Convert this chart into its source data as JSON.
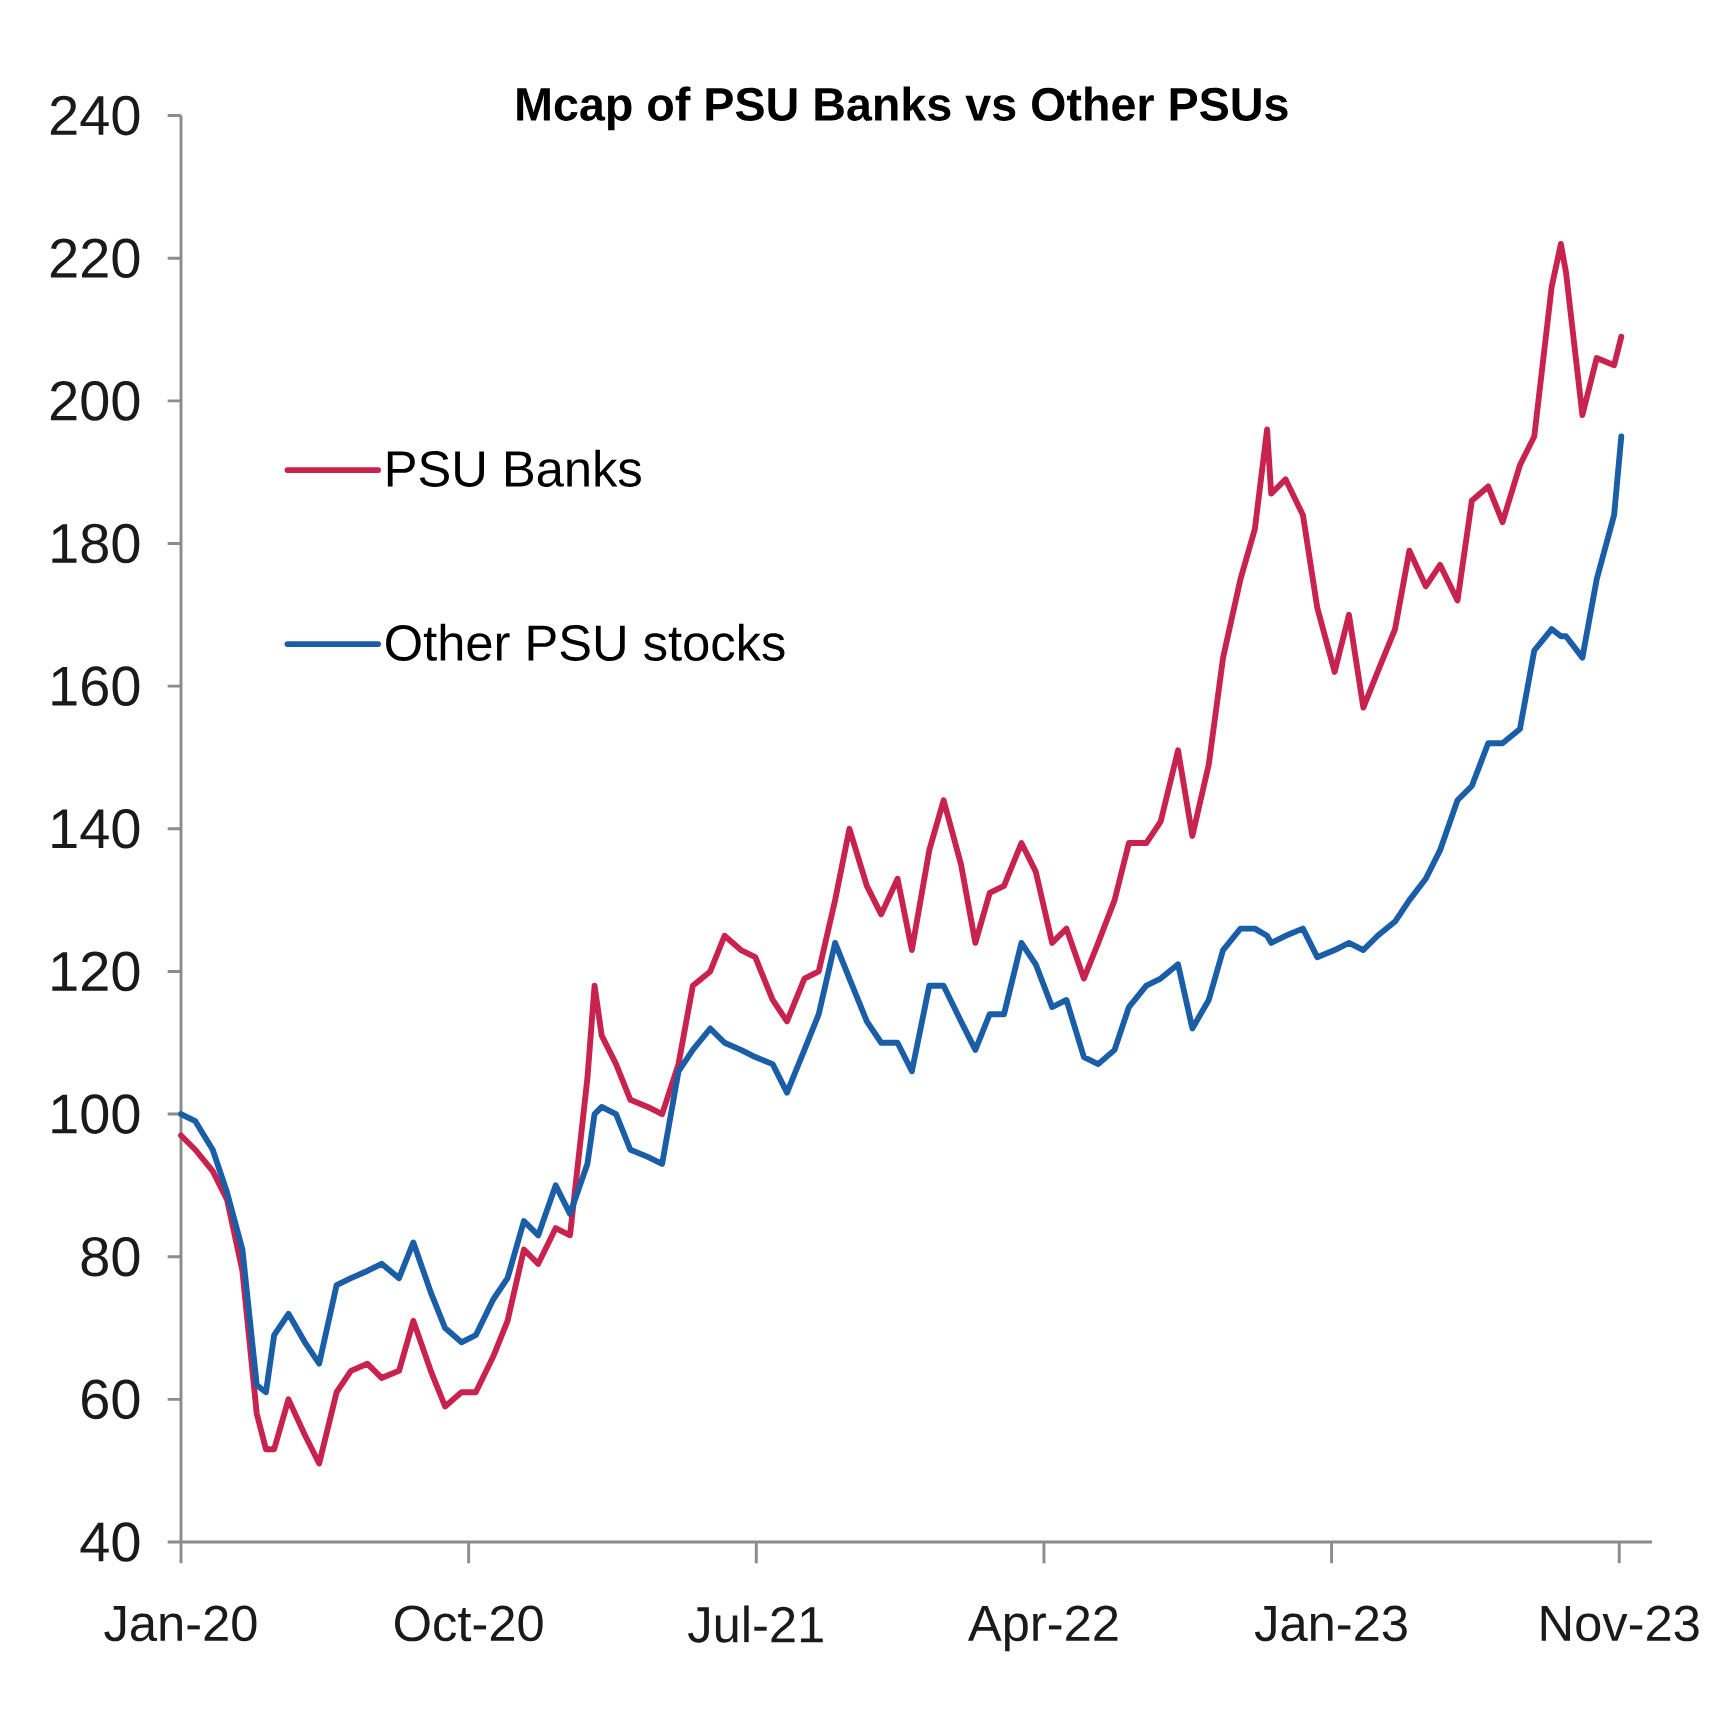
{
  "chart_data": {
    "type": "line",
    "title": "Mcap of PSU Banks vs Other PSUs",
    "x": [
      "2020-01-01",
      "2020-01-15",
      "2020-02-01",
      "2020-02-15",
      "2020-03-01",
      "2020-03-15",
      "2020-03-24",
      "2020-04-01",
      "2020-04-15",
      "2020-05-01",
      "2020-05-15",
      "2020-06-01",
      "2020-06-15",
      "2020-07-01",
      "2020-07-15",
      "2020-08-01",
      "2020-08-15",
      "2020-09-01",
      "2020-09-15",
      "2020-10-01",
      "2020-10-15",
      "2020-11-01",
      "2020-11-15",
      "2020-12-01",
      "2020-12-15",
      "2021-01-01",
      "2021-01-15",
      "2021-02-01",
      "2021-02-08",
      "2021-02-15",
      "2021-03-01",
      "2021-03-15",
      "2021-04-01",
      "2021-04-15",
      "2021-05-01",
      "2021-05-15",
      "2021-06-01",
      "2021-06-15",
      "2021-07-01",
      "2021-07-15",
      "2021-08-01",
      "2021-08-15",
      "2021-09-01",
      "2021-09-15",
      "2021-10-01",
      "2021-10-15",
      "2021-11-01",
      "2021-11-15",
      "2021-12-01",
      "2021-12-15",
      "2022-01-01",
      "2022-01-15",
      "2022-02-01",
      "2022-02-15",
      "2022-03-01",
      "2022-03-15",
      "2022-04-01",
      "2022-04-15",
      "2022-05-01",
      "2022-05-15",
      "2022-06-01",
      "2022-06-15",
      "2022-07-01",
      "2022-07-15",
      "2022-08-01",
      "2022-08-15",
      "2022-09-01",
      "2022-09-15",
      "2022-10-01",
      "2022-10-15",
      "2022-11-01",
      "2022-11-15",
      "2022-11-27",
      "2022-12-01",
      "2022-12-15",
      "2023-01-01",
      "2023-01-15",
      "2023-02-01",
      "2023-02-15",
      "2023-03-01",
      "2023-03-15",
      "2023-04-01",
      "2023-04-15",
      "2023-05-01",
      "2023-05-15",
      "2023-06-01",
      "2023-06-15",
      "2023-07-01",
      "2023-07-15",
      "2023-08-01",
      "2023-08-15",
      "2023-09-01",
      "2023-09-10",
      "2023-09-15",
      "2023-10-01",
      "2023-10-15",
      "2023-11-01",
      "2023-11-08"
    ],
    "series": [
      {
        "name": "PSU Banks",
        "color": "#c8234f",
        "values": [
          97,
          95,
          92,
          88,
          78,
          58,
          53,
          53,
          60,
          55,
          51,
          61,
          64,
          65,
          63,
          64,
          71,
          64,
          59,
          61,
          61,
          66,
          71,
          81,
          79,
          84,
          83,
          105,
          118,
          111,
          107,
          102,
          101,
          100,
          107,
          118,
          120,
          125,
          123,
          122,
          116,
          113,
          119,
          120,
          130,
          140,
          132,
          128,
          133,
          123,
          137,
          144,
          135,
          124,
          131,
          132,
          138,
          134,
          124,
          126,
          119,
          124,
          130,
          138,
          138,
          141,
          151,
          139,
          149,
          164,
          175,
          182,
          196,
          187,
          189,
          184,
          171,
          162,
          170,
          157,
          162,
          168,
          179,
          174,
          177,
          172,
          186,
          188,
          183,
          191,
          195,
          216,
          222,
          218,
          198,
          206,
          205,
          209
        ]
      },
      {
        "name": "Other PSU stocks",
        "color": "#1b5ea8",
        "values": [
          100,
          99,
          95,
          89,
          81,
          62,
          61,
          69,
          72,
          68,
          65,
          76,
          77,
          78,
          79,
          77,
          82,
          75,
          70,
          68,
          69,
          74,
          77,
          85,
          83,
          90,
          86,
          93,
          100,
          101,
          100,
          95,
          94,
          93,
          106,
          109,
          112,
          110,
          109,
          108,
          107,
          103,
          109,
          114,
          124,
          119,
          113,
          110,
          110,
          106,
          118,
          118,
          113,
          109,
          114,
          114,
          124,
          121,
          115,
          116,
          108,
          107,
          109,
          115,
          118,
          119,
          121,
          112,
          116,
          123,
          126,
          126,
          125,
          124,
          125,
          126,
          122,
          123,
          124,
          123,
          125,
          127,
          130,
          133,
          137,
          144,
          146,
          152,
          152,
          154,
          165,
          168,
          167,
          167,
          164,
          175,
          184,
          195
        ]
      }
    ],
    "xlim": [
      "2020-01-01",
      "2023-12-08"
    ],
    "xticks": [
      {
        "value": "2020-01-01",
        "label": "Jan-20"
      },
      {
        "value": "2020-10-08",
        "label": "Oct-20"
      },
      {
        "value": "2021-07-16",
        "label": "Jul-21"
      },
      {
        "value": "2022-04-23",
        "label": "Apr-22"
      },
      {
        "value": "2023-01-29",
        "label": "Jan-23"
      },
      {
        "value": "2023-11-06",
        "label": "Nov-23"
      }
    ],
    "ylim": [
      40,
      240
    ],
    "yticks": [
      40,
      60,
      80,
      100,
      120,
      140,
      160,
      180,
      200,
      220,
      240
    ],
    "legend": "top left",
    "marker": "none"
  }
}
